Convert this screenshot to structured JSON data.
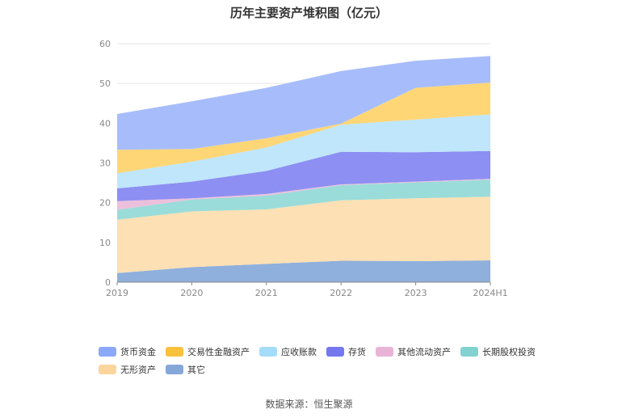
{
  "chart_data": {
    "type": "area",
    "stacked": true,
    "title": "历年主要资产堆积图（亿元）",
    "categories": [
      "2019",
      "2020",
      "2021",
      "2022",
      "2023",
      "2024H1"
    ],
    "ylim": [
      0,
      60
    ],
    "yticks": [
      0,
      10,
      20,
      30,
      40,
      50,
      60
    ],
    "grid": true,
    "legend_position": "bottom",
    "series": [
      {
        "name": "其它",
        "color": "#8fb0dc",
        "values": [
          2.3,
          3.8,
          4.6,
          5.4,
          5.3,
          5.5
        ]
      },
      {
        "name": "无形资产",
        "color": "#fde0b4",
        "values": [
          13.4,
          14.0,
          13.7,
          15.2,
          15.8,
          16.0
        ]
      },
      {
        "name": "长期股权投资",
        "color": "#9adcd9",
        "values": [
          2.5,
          3.0,
          3.5,
          3.8,
          4.0,
          4.3
        ]
      },
      {
        "name": "其他流动资产",
        "color": "#ecc0dc",
        "values": [
          2.2,
          0.3,
          0.4,
          0.2,
          0.2,
          0.2
        ]
      },
      {
        "name": "存货",
        "color": "#8d8ff2",
        "values": [
          3.2,
          4.2,
          5.8,
          8.2,
          7.4,
          7.0
        ]
      },
      {
        "name": "应收账款",
        "color": "#bfe6fb",
        "values": [
          3.8,
          5.0,
          5.9,
          6.8,
          8.2,
          9.2
        ]
      },
      {
        "name": "交易性金融资产",
        "color": "#fed676",
        "values": [
          5.9,
          3.2,
          2.3,
          0.3,
          8.0,
          8.0
        ]
      },
      {
        "name": "货币资金",
        "color": "#a7bdfb",
        "values": [
          9.0,
          12.0,
          12.7,
          13.2,
          6.8,
          6.7
        ]
      }
    ]
  },
  "legend_items": [
    {
      "label": "货币资金",
      "color": "#8ca9f9"
    },
    {
      "label": "交易性金融资产",
      "color": "#f9c13c"
    },
    {
      "label": "应收账款",
      "color": "#a5dcf9"
    },
    {
      "label": "存货",
      "color": "#7477ee"
    },
    {
      "label": "其他流动资产",
      "color": "#e9b3d6"
    },
    {
      "label": "长期股权投资",
      "color": "#82d2d0"
    },
    {
      "label": "无形资产",
      "color": "#fcd59d"
    },
    {
      "label": "其它",
      "color": "#86a8d8"
    }
  ],
  "source": "数据来源：恒生聚源"
}
